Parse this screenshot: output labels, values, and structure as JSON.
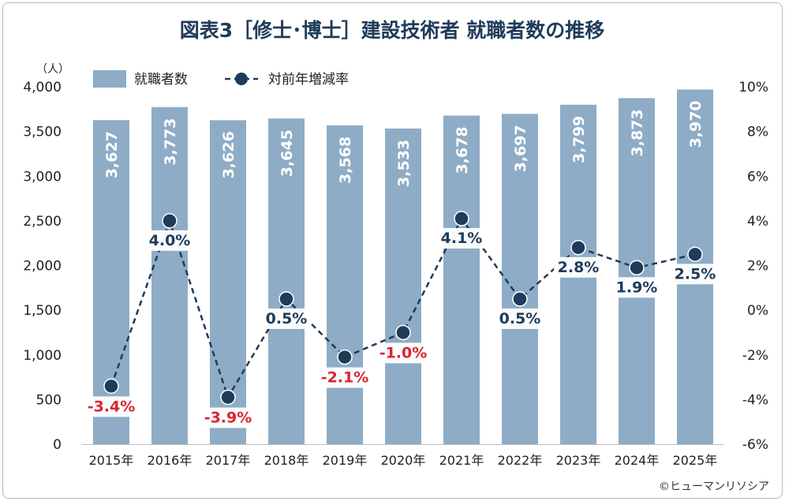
{
  "chart_data": {
    "type": "bar",
    "title": "図表3［修士･博士］建設技術者 就職者数の推移",
    "unit_label": "（人）",
    "credit": "©ヒューマンリソシア",
    "categories": [
      "2015年",
      "2016年",
      "2017年",
      "2018年",
      "2019年",
      "2020年",
      "2021年",
      "2022年",
      "2023年",
      "2024年",
      "2025年"
    ],
    "series": [
      {
        "name": "就職者数",
        "type": "bar",
        "axis": "left",
        "values": [
          3627,
          3773,
          3626,
          3645,
          3568,
          3533,
          3678,
          3697,
          3799,
          3873,
          3970
        ],
        "labels": [
          "3,627",
          "3,773",
          "3,626",
          "3,645",
          "3,568",
          "3,533",
          "3,678",
          "3,697",
          "3,799",
          "3,873",
          "3,970"
        ]
      },
      {
        "name": "対前年増減率",
        "type": "line",
        "axis": "right",
        "values": [
          -3.4,
          4.0,
          -3.9,
          0.5,
          -2.1,
          -1.0,
          4.1,
          0.5,
          2.8,
          1.9,
          2.5
        ],
        "labels": [
          "-3.4%",
          "4.0%",
          "-3.9%",
          "0.5%",
          "-2.1%",
          "-1.0%",
          "4.1%",
          "0.5%",
          "2.8%",
          "1.9%",
          "2.5%"
        ]
      }
    ],
    "y_left": {
      "min": 0,
      "max": 4000,
      "ticks": [
        "0",
        "500",
        "1,000",
        "1,500",
        "2,000",
        "2,500",
        "3,000",
        "3,500",
        "4,000"
      ]
    },
    "y_right": {
      "min": -6,
      "max": 10,
      "ticks": [
        "-6%",
        "-4%",
        "-2%",
        "0%",
        "2%",
        "4%",
        "6%",
        "8%",
        "10%"
      ]
    },
    "grid": false,
    "legend": "top-left",
    "colors": {
      "bar": "#8eacc6",
      "line": "#1f3b5a",
      "negative_label": "#d9262e",
      "positive_label": "#1f3b5a",
      "bar_label": "#ffffff",
      "text": "#222222",
      "title": "#1f3b5a"
    }
  }
}
